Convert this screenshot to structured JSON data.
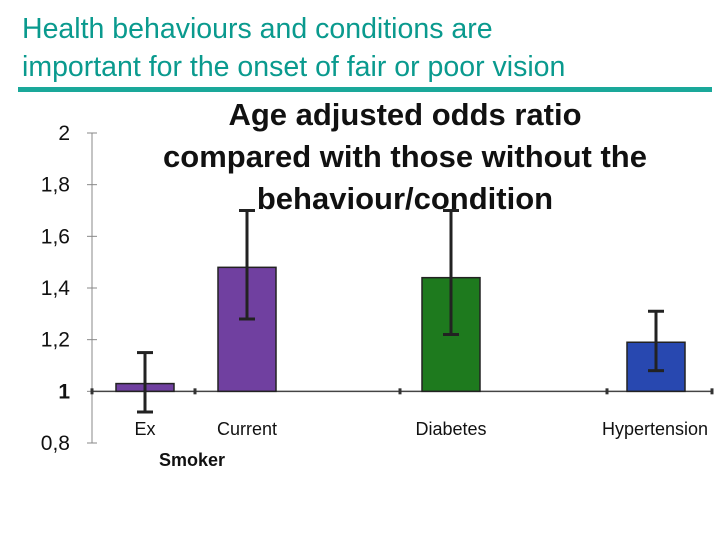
{
  "slide": {
    "title_line1": "Health behaviours and conditions are",
    "title_line2": "important for the onset of fair or poor vision",
    "title_color": "#0a9a8e",
    "rule_color": "#1aa89a"
  },
  "chart_data": {
    "type": "bar",
    "title_lines": [
      "Age adjusted odds ratio",
      "compared with those without the",
      "behaviour/condition"
    ],
    "categories": [
      "Ex",
      "Current",
      "Diabetes",
      "Hypertension"
    ],
    "group_label": "Smoker",
    "values": [
      1.03,
      1.48,
      1.44,
      1.19
    ],
    "error_low": [
      0.92,
      1.28,
      1.22,
      1.08
    ],
    "error_high": [
      1.15,
      1.7,
      1.7,
      1.31
    ],
    "colors": [
      "#7040a0",
      "#7040a0",
      "#1e7a1e",
      "#2848b0"
    ],
    "y_ticks": [
      "2",
      "1,8",
      "1,6",
      "1,4",
      "1,2",
      "1",
      "0,8"
    ],
    "y_tick_values": [
      2.0,
      1.8,
      1.6,
      1.4,
      1.2,
      1.0,
      0.8
    ],
    "ylim": [
      0.8,
      2.0
    ],
    "baseline": 1.0
  }
}
